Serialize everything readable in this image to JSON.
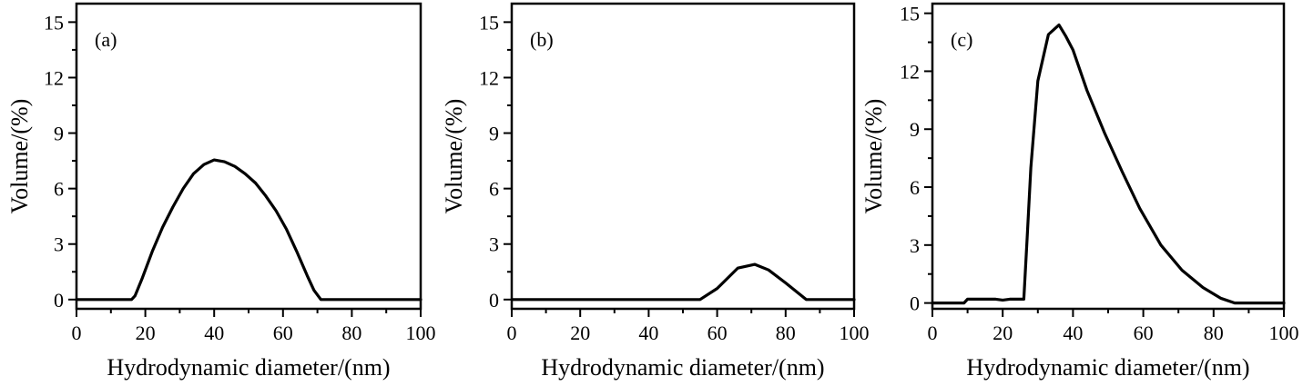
{
  "chart_data": [
    {
      "type": "line",
      "panel_label": "(a)",
      "xlabel": "Hydrodynamic diameter/(nm)",
      "ylabel": "Volume/(%)",
      "xlim": [
        0,
        100
      ],
      "ylim": [
        -0.5,
        16
      ],
      "xticks": [
        0,
        20,
        40,
        60,
        80,
        100
      ],
      "xtick_labels": [
        "0",
        "20",
        "40",
        "60",
        "80",
        "100"
      ],
      "yticks": [
        0,
        3,
        6,
        9,
        12,
        15
      ],
      "ytick_labels": [
        "0",
        "3",
        "6",
        "9",
        "12",
        "15"
      ],
      "grid": false,
      "series": [
        {
          "x": [
            0,
            16,
            17,
            19,
            22,
            25,
            28,
            31,
            34,
            37,
            40,
            43,
            46,
            49,
            52,
            55,
            58,
            61,
            64,
            67,
            69,
            71,
            75,
            80,
            90,
            100
          ],
          "y": [
            0,
            0,
            0.2,
            1.1,
            2.6,
            3.9,
            5.0,
            6.0,
            6.8,
            7.3,
            7.55,
            7.45,
            7.2,
            6.8,
            6.3,
            5.6,
            4.8,
            3.8,
            2.6,
            1.3,
            0.5,
            0,
            0,
            0,
            0,
            0
          ]
        }
      ]
    },
    {
      "type": "line",
      "panel_label": "(b)",
      "xlabel": "Hydrodynamic diameter/(nm)",
      "ylabel": "Volume/(%)",
      "xlim": [
        0,
        100
      ],
      "ylim": [
        -0.5,
        16
      ],
      "xticks": [
        0,
        20,
        40,
        60,
        80,
        100
      ],
      "xtick_labels": [
        "0",
        "20",
        "40",
        "60",
        "80",
        "100"
      ],
      "yticks": [
        0,
        3,
        6,
        9,
        12,
        15
      ],
      "ytick_labels": [
        "0",
        "3",
        "6",
        "9",
        "12",
        "15"
      ],
      "grid": false,
      "series": [
        {
          "x": [
            0,
            10,
            20,
            30,
            40,
            50,
            55,
            60,
            66,
            71,
            75,
            80,
            86,
            90,
            100
          ],
          "y": [
            0,
            0,
            0,
            0,
            0,
            0,
            0,
            0.6,
            1.7,
            1.9,
            1.6,
            0.9,
            0,
            0,
            0
          ]
        }
      ]
    },
    {
      "type": "line",
      "panel_label": "(c)",
      "xlabel": "Hydrodynamic diameter/(nm)",
      "ylabel": "Volume/(%)",
      "xlim": [
        0,
        100
      ],
      "ylim": [
        -0.3,
        15.5
      ],
      "xticks": [
        0,
        20,
        40,
        60,
        80,
        100
      ],
      "xtick_labels": [
        "0",
        "20",
        "40",
        "60",
        "80",
        "100"
      ],
      "yticks": [
        0,
        3,
        6,
        9,
        12,
        15
      ],
      "ytick_labels": [
        "0",
        "3",
        "6",
        "9",
        "12",
        "15"
      ],
      "grid": false,
      "series": [
        {
          "x": [
            0,
            9,
            10,
            15,
            18,
            20,
            22,
            24,
            26,
            27,
            28,
            30,
            33,
            36,
            38,
            40,
            44,
            49,
            54,
            59,
            65,
            71,
            77,
            82,
            86,
            90,
            100
          ],
          "y": [
            0,
            0,
            0.2,
            0.2,
            0.2,
            0.15,
            0.2,
            0.2,
            0.2,
            3.5,
            7.0,
            11.5,
            13.9,
            14.4,
            13.8,
            13.1,
            11.0,
            8.8,
            6.8,
            4.9,
            3.0,
            1.7,
            0.8,
            0.25,
            0,
            0,
            0
          ]
        }
      ]
    }
  ]
}
